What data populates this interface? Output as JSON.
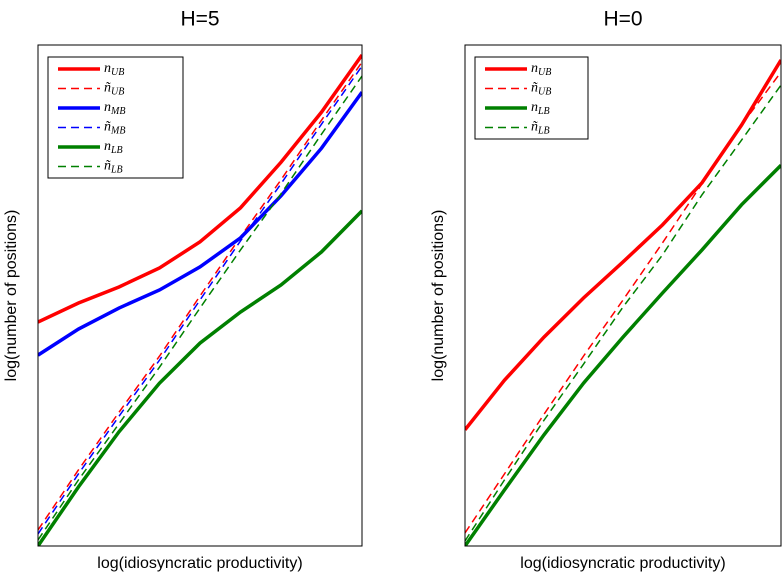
{
  "chart_data": [
    {
      "type": "line",
      "title": "H=5",
      "xlabel": "log(idiosyncratic productivity)",
      "ylabel": "log(number of positions)",
      "x": [
        0,
        1,
        2,
        3,
        4,
        5,
        6,
        7,
        8
      ],
      "xlim": [
        0,
        8
      ],
      "ylim": [
        0,
        100
      ],
      "legend": "upper left",
      "series": [
        {
          "name": "n_UB",
          "color": "#ff0000",
          "style": "solid",
          "values": [
            44.7,
            48.5,
            51.7,
            55.5,
            60.7,
            67.5,
            76.6,
            86.6,
            98
          ]
        },
        {
          "name": "ñ_UB",
          "color": "#ff0000",
          "style": "dashed",
          "values": [
            3.2,
            15.2,
            26.7,
            37.9,
            49.9,
            61.7,
            73.1,
            85,
            96.6
          ]
        },
        {
          "name": "n_MB",
          "color": "#0000ff",
          "style": "solid",
          "values": [
            38.1,
            43.3,
            47.5,
            51.1,
            55.7,
            61.5,
            69.9,
            79.4,
            90.6
          ]
        },
        {
          "name": "ñ_MB",
          "color": "#0000ff",
          "style": "dashed",
          "values": [
            2.4,
            14.4,
            25.9,
            37.1,
            49.1,
            60.9,
            72.3,
            84.2,
            95.8
          ]
        },
        {
          "name": "n_LB",
          "color": "#008000",
          "style": "solid",
          "values": [
            0,
            11.8,
            22.8,
            32.5,
            40.5,
            46.7,
            52.1,
            58.7,
            66.9
          ]
        },
        {
          "name": "ñ_LB",
          "color": "#008000",
          "style": "dashed",
          "values": [
            1.2,
            13.2,
            24.4,
            35.7,
            47.5,
            59.1,
            70.3,
            82.2,
            93.8
          ]
        }
      ]
    },
    {
      "type": "line",
      "title": "H=0",
      "xlabel": "log(idiosyncratic productivity)",
      "ylabel": "log(number of positions)",
      "x": [
        0,
        1,
        2,
        3,
        4,
        5,
        6,
        7,
        8
      ],
      "xlim": [
        0,
        8
      ],
      "ylim": [
        0,
        100
      ],
      "legend": "upper left",
      "series": [
        {
          "name": "n_UB",
          "color": "#ff0000",
          "style": "solid",
          "values": [
            23.2,
            33.1,
            41.7,
            49.5,
            56.7,
            64.1,
            72.5,
            84,
            97
          ]
        },
        {
          "name": "ñ_UB",
          "color": "#ff0000",
          "style": "dashed",
          "values": [
            2.6,
            14.4,
            26.3,
            37.9,
            49.1,
            60.5,
            72.3,
            84,
            94.6
          ]
        },
        {
          "name": "n_LB",
          "color": "#008000",
          "style": "solid",
          "values": [
            0,
            11.2,
            22.2,
            32.5,
            41.7,
            50.5,
            59.1,
            68.1,
            76
          ]
        },
        {
          "name": "ñ_LB",
          "color": "#008000",
          "style": "dashed",
          "values": [
            1,
            13.2,
            25.1,
            36.3,
            47.7,
            58.1,
            70.1,
            81,
            92
          ]
        }
      ]
    }
  ]
}
